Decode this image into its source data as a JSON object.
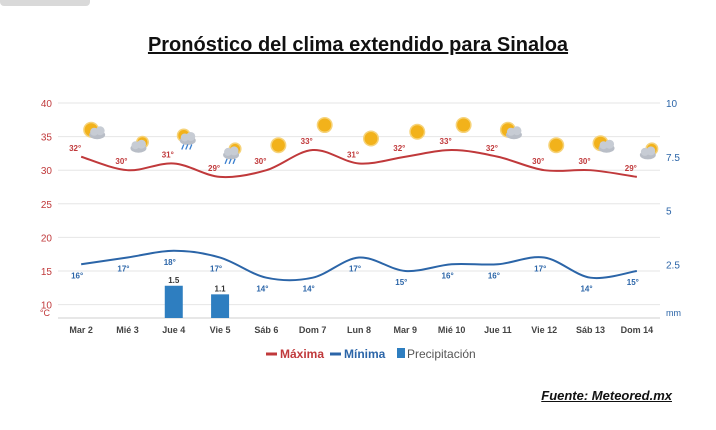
{
  "title": "Pronóstico del clima extendido para Sinaloa",
  "source": "Fuente: Meteored.mx",
  "colors": {
    "max": "#c0393b",
    "min": "#2b65a8",
    "precip": "#2e7ec0",
    "axis_left": "#c0393b",
    "axis_right": "#2b65a8"
  },
  "chart_data": {
    "type": "line",
    "categories": [
      "Mar 2",
      "Mié 3",
      "Jue 4",
      "Vie 5",
      "Sáb 6",
      "Dom 7",
      "Lun 8",
      "Mar 9",
      "Mié 10",
      "Jue 11",
      "Vie 12",
      "Sáb 13",
      "Dom 14"
    ],
    "left_axis": {
      "unit": "°C",
      "ticks": [
        10,
        15,
        20,
        25,
        30,
        35,
        40
      ],
      "ylim": [
        8,
        40
      ]
    },
    "right_axis": {
      "unit": "mm",
      "ticks": [
        2.5,
        5,
        7.5,
        10
      ],
      "ylim": [
        0,
        10
      ]
    },
    "series": [
      {
        "name": "Máxima",
        "values": [
          32,
          30,
          31,
          29,
          30,
          33,
          31,
          32,
          33,
          32,
          30,
          30,
          29
        ],
        "labels": [
          "32°",
          "30°",
          "31°",
          "29°",
          "30°",
          "33°",
          "31°",
          "32°",
          "33°",
          "32°",
          "30°",
          "30°",
          "29°"
        ]
      },
      {
        "name": "Mínima",
        "values": [
          16,
          17,
          18,
          17,
          14,
          14,
          17,
          15,
          16,
          16,
          17,
          14,
          15
        ],
        "labels": [
          "16°",
          "17°",
          "18°",
          "17°",
          "14°",
          "14°",
          "17°",
          "15°",
          "16°",
          "16°",
          "17°",
          "14°",
          "15°"
        ]
      },
      {
        "name": "Precipitación",
        "type": "bar",
        "values": [
          null,
          null,
          1.5,
          1.1,
          null,
          null,
          null,
          null,
          null,
          null,
          null,
          null,
          null
        ],
        "labels": [
          "",
          "",
          "1.5",
          "1.1",
          "",
          "",
          "",
          "",
          "",
          "",
          "",
          "",
          ""
        ]
      }
    ],
    "icons": [
      "sun-cloud-icon",
      "cloud-sun-icon",
      "sun-cloud-rain-icon",
      "cloud-rain-icon",
      "sun-icon",
      "sun-icon",
      "sun-icon",
      "sun-icon",
      "sun-icon",
      "sun-cloud-icon",
      "sun-icon",
      "sun-cloud-icon",
      "cloud-sun-icon"
    ],
    "legend": {
      "position": "bottom-center",
      "items": [
        "Máxima",
        "Mínima",
        "Precipitación"
      ]
    }
  }
}
